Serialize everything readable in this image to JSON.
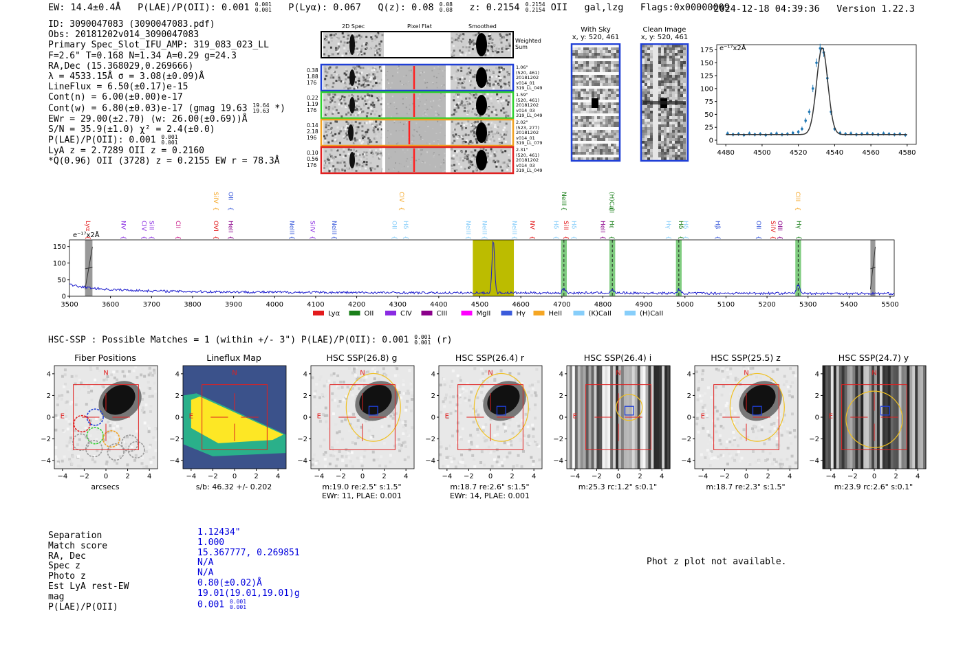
{
  "header": {
    "ew": "EW: 14.4±0.4Å",
    "plae_label": "P(LAE)/P(OII): 0.001",
    "plae_hi": "0.001",
    "plae_lo": "0.001",
    "plya": "P(Lyα): 0.067",
    "qz_label": "Q(z): 0.08",
    "qz_hi": "0.08",
    "qz_lo": "0.08",
    "z_label": "z: 0.2154",
    "z_hi": "0.2154",
    "z_lo": "0.2154",
    "z_line": "OII",
    "classes": "gal,lzg",
    "flags": "Flags:0x00000009",
    "datetime": "2024-12-18 04:39:36",
    "version": "Version 1.22.3"
  },
  "info": {
    "l1": "ID: 3090047083 (3090047083.pdf)",
    "l2": "Obs: 20181202v014_3090047083",
    "l3": "Primary Spec_Slot_IFU_AMP: 319_083_023_LL",
    "l4": "F=2.6\"  T=0.168  N=1.34  A=0.29  g=24.3",
    "l5": "RA,Dec (15.368029,0.269666)",
    "l6": "λ = 4533.15Å  σ = 3.08(±0.09)Å",
    "l7": "LineFlux = 6.50(±0.17)e-15",
    "l8": "Cont(n) = 6.00(±0.00)e-17",
    "l9a": "Cont(w) = 6.80(±0.03)e-17 (gmag 19.63",
    "l9_hi": "19.64",
    "l9_lo": "19.63",
    "l9b": "*)",
    "l10": "EWr = 29.00(±2.70) (w: 26.00(±0.69))Å",
    "l11": "S/N = 35.9(±1.0)  χ² = 2.4(±0.0)",
    "l12a": "P(LAE)/P(OII): 0.001",
    "l12_hi": "0.001",
    "l12_lo": "0.001",
    "l13": "LyA z = 2.7289  OII z = 0.2160",
    "l14": "*Q(0.96) OII (3728) z = 0.2155  EW r = 78.3Å"
  },
  "spec2d": {
    "col_titles": [
      "2D Spec",
      "Pixel Flat",
      "Smoothed"
    ],
    "weighted_label": "Weighted Sum",
    "rows": [
      {
        "left": [
          "0.38",
          "1.88",
          "176"
        ],
        "right": [
          "1.06\"",
          "(520, 461)",
          "20181202",
          "v014_01",
          "319_LL_049"
        ],
        "color": "#1f3fd6"
      },
      {
        "left": [
          "0.22",
          "1.19",
          "176"
        ],
        "right": [
          "1.59\"",
          "(520, 461)",
          "20181202",
          "v014_03",
          "319_LL_049"
        ],
        "color": "#2dcf2d"
      },
      {
        "left": [
          "0.14",
          "2.18",
          "196"
        ],
        "right": [
          "2.02\"",
          "(523, 277)",
          "20181202",
          "v014_01",
          "319_LL_079"
        ],
        "color": "#f0a020"
      },
      {
        "left": [
          "0.10",
          "0.56",
          "176"
        ],
        "right": [
          "2.31\"",
          "(520, 461)",
          "20181202",
          "v014_03",
          "319_LL_049"
        ],
        "color": "#e02020"
      }
    ]
  },
  "sky_panels": {
    "with_sky_title": "With Sky",
    "with_sky_coords": "x, y: 520, 461",
    "clean_title": "Clean Image",
    "clean_coords": "x, y: 520, 461"
  },
  "line_fit": {
    "unit_label": "e⁻¹⁷x2Å",
    "y_ticks": [
      "0",
      "25",
      "50",
      "75",
      "100",
      "125",
      "150",
      "175"
    ],
    "x_ticks": [
      "4480",
      "4500",
      "4520",
      "4540",
      "4560",
      "4580"
    ]
  },
  "full_spectrum": {
    "unit_label": "e⁻¹⁷x2Å",
    "y_ticks": [
      "0",
      "50",
      "100",
      "150"
    ],
    "x_ticks": [
      "3500",
      "3600",
      "3700",
      "3800",
      "3900",
      "4000",
      "4100",
      "4200",
      "4300",
      "4400",
      "4500",
      "4600",
      "4700",
      "4800",
      "4900",
      "5000",
      "5100",
      "5200",
      "5300",
      "5400",
      "5500"
    ],
    "legend": [
      {
        "label": "Lyα",
        "color": "#e31a1c"
      },
      {
        "label": "OII",
        "color": "#1a7f1a"
      },
      {
        "label": "CIV",
        "color": "#8a2be2"
      },
      {
        "label": "CIII",
        "color": "#8b008b"
      },
      {
        "label": "MgII",
        "color": "#ff00ff"
      },
      {
        "label": "Hγ",
        "color": "#3b5bdb"
      },
      {
        "label": "HeII",
        "color": "#f5a623"
      },
      {
        "label": "(K)CaII",
        "color": "#87cefa"
      },
      {
        "label": "(H)CaII",
        "color": "#87cefa"
      }
    ],
    "line_labels": [
      {
        "t": "Lyα",
        "w": 3545,
        "c": "#e31a1c",
        "lvl": 0
      },
      {
        "t": "NV",
        "w": 3632,
        "c": "#8a2be2",
        "lvl": 0
      },
      {
        "t": "CIV",
        "w": 3682,
        "c": "#8a2be2",
        "lvl": 0
      },
      {
        "t": "SiII",
        "w": 3700,
        "c": "#8a2be2",
        "lvl": 0
      },
      {
        "t": "CII",
        "w": 3765,
        "c": "#c71585",
        "lvl": 0
      },
      {
        "t": "OVI",
        "w": 3857,
        "c": "#e31a1c",
        "lvl": 0
      },
      {
        "t": "SiIV",
        "w": 3857,
        "c": "#f5a623",
        "lvl": 1
      },
      {
        "t": "HeII",
        "w": 3893,
        "c": "#8b008b",
        "lvl": 0
      },
      {
        "t": "OII",
        "w": 3893,
        "c": "#3b5bdb",
        "lvl": 1
      },
      {
        "t": "NeIII",
        "w": 4042,
        "c": "#3b5bdb",
        "lvl": 0
      },
      {
        "t": "SiIV",
        "w": 4093,
        "c": "#8a2be2",
        "lvl": 0
      },
      {
        "t": "NeIII",
        "w": 4145,
        "c": "#3b5bdb",
        "lvl": 0
      },
      {
        "t": "OII",
        "w": 4292,
        "c": "#87cefa",
        "lvl": 0
      },
      {
        "t": "Hδ",
        "w": 4320,
        "c": "#87cefa",
        "lvl": 0
      },
      {
        "t": "CIV",
        "w": 4310,
        "c": "#f5a623",
        "lvl": 1
      },
      {
        "t": "NeIII",
        "w": 4472,
        "c": "#87cefa",
        "lvl": 0
      },
      {
        "t": "NeIII",
        "w": 4512,
        "c": "#87cefa",
        "lvl": 0
      },
      {
        "t": "NeIII",
        "w": 4585,
        "c": "#87cefa",
        "lvl": 0
      },
      {
        "t": "NV",
        "w": 4628,
        "c": "#e31a1c",
        "lvl": 0
      },
      {
        "t": "Hδ",
        "w": 4686,
        "c": "#87cefa",
        "lvl": 0
      },
      {
        "t": "SiII",
        "w": 4710,
        "c": "#e31a1c",
        "lvl": 0
      },
      {
        "t": "Hδ",
        "w": 4730,
        "c": "#87cefa",
        "lvl": 0
      },
      {
        "t": "NeIII",
        "w": 4705,
        "c": "#1a7f1a",
        "lvl": 1
      },
      {
        "t": "HeII",
        "w": 4800,
        "c": "#8b008b",
        "lvl": 0
      },
      {
        "t": "Hε",
        "w": 4822,
        "c": "#1a7f1a",
        "lvl": 0
      },
      {
        "t": "(H)CaII",
        "w": 4822,
        "c": "#1a7f1a",
        "lvl": 1
      },
      {
        "t": "Hγ",
        "w": 4960,
        "c": "#87cefa",
        "lvl": 0
      },
      {
        "t": "Hδ",
        "w": 4990,
        "c": "#1a7f1a",
        "lvl": 0
      },
      {
        "t": "Hδ",
        "w": 5002,
        "c": "#87cefa",
        "lvl": 0
      },
      {
        "t": "Hβ",
        "w": 5080,
        "c": "#3b5bdb",
        "lvl": 0
      },
      {
        "t": "OII",
        "w": 5180,
        "c": "#3b5bdb",
        "lvl": 0
      },
      {
        "t": "SiIV",
        "w": 5215,
        "c": "#e31a1c",
        "lvl": 0
      },
      {
        "t": "OIII",
        "w": 5232,
        "c": "#8b008b",
        "lvl": 0
      },
      {
        "t": "Hγ",
        "w": 5278,
        "c": "#1a7f1a",
        "lvl": 0
      },
      {
        "t": "CIII",
        "w": 5275,
        "c": "#f5a623",
        "lvl": 1
      }
    ]
  },
  "hsc": {
    "header_a": "HSC-SSP : Possible Matches = 1 (within +/- 3\")  P(LAE)/P(OII): 0.001",
    "header_hi": "0.001",
    "header_lo": "0.001",
    "header_b": "(r)",
    "cutouts": [
      {
        "title": "Fiber Positions",
        "cap1": "arcsecs",
        "cap2": ""
      },
      {
        "title": "Lineflux Map",
        "cap1": "s/b: 46.32 +/- 0.202",
        "cap2": ""
      },
      {
        "title": "HSC SSP(26.8) g",
        "cap1": "m:19.0  re:2.5\"  s:1.5\"",
        "cap2": "EWr: 11, PLAE: 0.001"
      },
      {
        "title": "HSC SSP(26.4) r",
        "cap1": "m:18.7  re:2.6\"  s:1.5\"",
        "cap2": "EWr: 14, PLAE: 0.001"
      },
      {
        "title": "HSC SSP(26.4) i",
        "cap1": "m:25.3 rc:1.2\"  s:0.1\"",
        "cap2": ""
      },
      {
        "title": "HSC SSP(25.5) z",
        "cap1": "m:18.7  re:2.3\"  s:1.5\"",
        "cap2": ""
      },
      {
        "title": "HSC SSP(24.7) y",
        "cap1": "m:23.9 rc:2.6\"  s:0.1\"",
        "cap2": ""
      }
    ],
    "axis_ticks_y": [
      "4",
      "2",
      "0",
      "−2",
      "−4"
    ],
    "axis_ticks_x": [
      "−4",
      "−2",
      "0",
      "2",
      "4"
    ],
    "north_label": "N",
    "east_label": "E"
  },
  "match": {
    "labels": [
      "Separation",
      "Match score",
      "RA, Dec",
      "Spec z",
      "Photo z",
      "Est LyA rest-EW",
      "mag",
      "P(LAE)/P(OII)"
    ],
    "separation": "1.12434\"",
    "match_score": "1.000",
    "radec": "15.367777, 0.269851",
    "spec_z": "N/A",
    "photo_z": "N/A",
    "est_ew": "0.80(±0.02)Å",
    "mag": "19.01(19.01,19.01)g",
    "plae": "0.001",
    "plae_hi": "0.001",
    "plae_lo": "0.001"
  },
  "photz_note": "Phot z plot not available.",
  "chart_data": [
    {
      "type": "scatter",
      "title": "Emission line fit",
      "ylabel": "e⁻¹⁷x2Å",
      "xlim": [
        4475,
        4585
      ],
      "ylim": [
        -8,
        185
      ],
      "x": [
        4481,
        4484,
        4487,
        4490,
        4493,
        4496,
        4499,
        4502,
        4505,
        4508,
        4511,
        4514,
        4517,
        4520,
        4522,
        4524,
        4526,
        4528,
        4530,
        4532,
        4534,
        4536,
        4538,
        4540,
        4543,
        4546,
        4549,
        4552,
        4555,
        4558,
        4561,
        4564,
        4567,
        4570,
        4573,
        4576,
        4579
      ],
      "y": [
        13,
        11,
        12,
        10,
        13,
        11,
        12,
        10,
        12,
        13,
        11,
        12,
        14,
        16,
        22,
        38,
        55,
        100,
        150,
        178,
        170,
        120,
        55,
        22,
        14,
        12,
        13,
        11,
        12,
        13,
        12,
        11,
        13,
        12,
        11,
        12,
        10
      ],
      "fit_center": 4533.15,
      "fit_sigma": 3.08,
      "fit_amplitude": 168,
      "fit_continuum": 11
    },
    {
      "type": "line",
      "title": "Full spectrum",
      "ylabel": "e⁻¹⁷x2Å",
      "xlim": [
        3500,
        5510
      ],
      "ylim": [
        0,
        170
      ],
      "continuum": [
        [
          3500,
          35
        ],
        [
          3520,
          30
        ],
        [
          3550,
          25
        ],
        [
          3600,
          20
        ],
        [
          3700,
          16
        ],
        [
          3800,
          14
        ],
        [
          3900,
          13
        ],
        [
          4000,
          12
        ],
        [
          4200,
          11
        ],
        [
          4400,
          10
        ],
        [
          4600,
          10
        ],
        [
          4800,
          10
        ],
        [
          5000,
          9
        ],
        [
          5200,
          9
        ],
        [
          5500,
          8
        ]
      ],
      "emission_lines": [
        {
          "w": 4533,
          "amp": 160,
          "s": 3.1
        },
        {
          "w": 4705,
          "amp": 14,
          "s": 3.5
        },
        {
          "w": 4823,
          "amp": 9,
          "s": 3.5
        },
        {
          "w": 4985,
          "amp": 10,
          "s": 3.5
        },
        {
          "w": 5276,
          "amp": 26,
          "s": 3.5
        }
      ],
      "highlights": [
        {
          "from": 4483,
          "to": 4583,
          "color": "#bcbc00",
          "kind": "fit_window"
        },
        {
          "from": 4698,
          "to": 4712,
          "color": "#7fcc7f",
          "kind": "line"
        },
        {
          "from": 4816,
          "to": 4830,
          "color": "#7fcc7f",
          "kind": "line"
        },
        {
          "from": 4978,
          "to": 4992,
          "color": "#7fcc7f",
          "kind": "line"
        },
        {
          "from": 5269,
          "to": 5283,
          "color": "#7fcc7f",
          "kind": "line"
        },
        {
          "from": 3538,
          "to": 3556,
          "color": "#999999",
          "kind": "masked"
        },
        {
          "from": 5452,
          "to": 5464,
          "color": "#999999",
          "kind": "masked"
        }
      ]
    }
  ]
}
